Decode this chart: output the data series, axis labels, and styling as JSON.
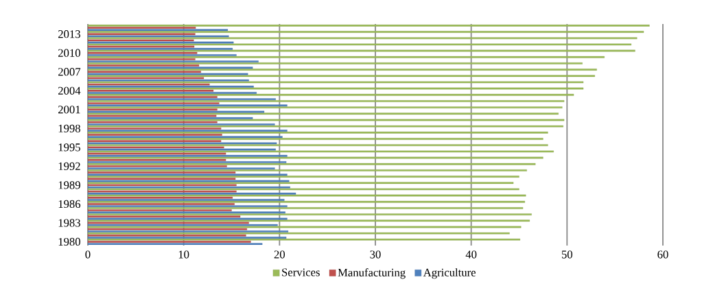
{
  "chart_data": {
    "type": "bar",
    "orientation": "horizontal",
    "categories": [
      null,
      "2013",
      null,
      null,
      "2010",
      null,
      null,
      "2007",
      null,
      null,
      "2004",
      null,
      null,
      "2001",
      null,
      null,
      "1998",
      null,
      null,
      "1995",
      null,
      null,
      "1992",
      null,
      null,
      "1989",
      null,
      null,
      "1986",
      null,
      null,
      "1983",
      null,
      null,
      "1980"
    ],
    "series": [
      {
        "name": "Services",
        "color": "#9bbb59",
        "values": [
          58.6,
          58.0,
          57.3,
          56.7,
          57.1,
          53.9,
          51.6,
          53.1,
          52.9,
          51.7,
          51.7,
          50.7,
          49.7,
          49.5,
          49.1,
          49.7,
          49.6,
          48.0,
          47.5,
          48.0,
          48.6,
          47.5,
          46.7,
          45.8,
          45.0,
          44.4,
          45.0,
          45.7,
          45.6,
          45.4,
          46.3,
          46.1,
          45.2,
          44.0,
          45.1
        ]
      },
      {
        "name": "Manufacturing",
        "color": "#c0504d",
        "values": [
          11.25,
          11.2,
          11.05,
          11.1,
          11.4,
          11.2,
          11.6,
          11.8,
          12.1,
          12.7,
          13.1,
          13.5,
          13.7,
          13.5,
          13.4,
          13.5,
          13.9,
          14.0,
          13.9,
          14.2,
          14.4,
          14.4,
          14.5,
          15.4,
          15.4,
          15.5,
          15.5,
          15.1,
          15.3,
          15.0,
          15.9,
          16.8,
          16.6,
          16.5,
          17.0
        ]
      },
      {
        "name": "Agriculture",
        "color": "#4f81bd",
        "values": [
          14.6,
          14.7,
          15.2,
          15.1,
          15.5,
          17.8,
          17.2,
          16.7,
          16.8,
          17.3,
          17.6,
          19.6,
          20.8,
          18.4,
          17.2,
          19.5,
          20.8,
          20.3,
          19.7,
          19.6,
          20.8,
          20.7,
          19.5,
          20.8,
          21.0,
          21.1,
          21.7,
          20.5,
          20.8,
          20.6,
          20.8,
          19.8,
          20.9,
          20.7,
          18.2
        ]
      }
    ],
    "xlim": [
      0,
      60
    ],
    "xticks": [
      0,
      10,
      20,
      30,
      40,
      50,
      60
    ],
    "grid": "x",
    "legend": "bottom"
  }
}
